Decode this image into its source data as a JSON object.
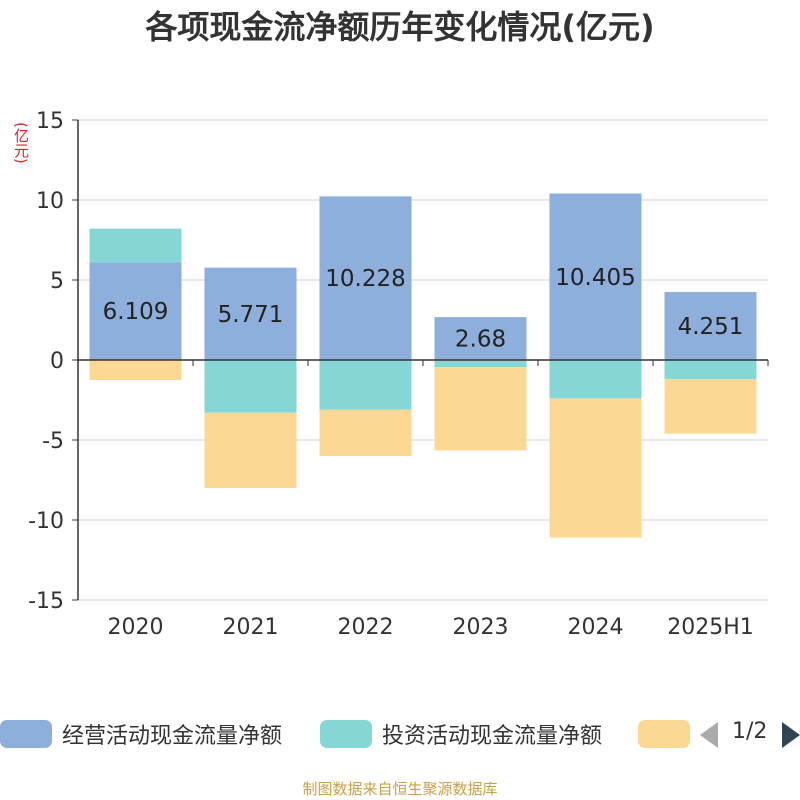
{
  "title": "各项现金流净额历年变化情况(亿元)",
  "unit_label": "(亿元)",
  "source": "制图数据来自恒生聚源数据库",
  "legend": {
    "items": [
      {
        "label": "经营活动现金流量净额",
        "color": "#8eaedc"
      },
      {
        "label": "投资活动现金流量净额",
        "color": "#86d6d6"
      },
      {
        "label": "",
        "color": "#fdd894"
      }
    ],
    "pager": "1/2"
  },
  "chart_data": {
    "type": "bar",
    "stacked": true,
    "categories": [
      "2020",
      "2021",
      "2022",
      "2023",
      "2024",
      "2025H1"
    ],
    "ylim": [
      -15,
      15
    ],
    "yticks": [
      15,
      10,
      5,
      0,
      -5,
      -10,
      -15
    ],
    "grid": true,
    "legend_position": "bottom",
    "series": [
      {
        "name": "经营活动现金流量净额",
        "color": "#8eaedc",
        "values": [
          6.109,
          5.771,
          10.228,
          2.68,
          10.405,
          4.251
        ],
        "labels": [
          "6.109",
          "5.771",
          "10.228",
          "2.68",
          "10.405",
          "4.251"
        ]
      },
      {
        "name": "投资活动现金流量净额",
        "color": "#86d6d6",
        "values": [
          2.1,
          -3.3,
          -3.1,
          -0.45,
          -2.4,
          -1.2
        ]
      },
      {
        "name": "",
        "color": "#fdd894",
        "values": [
          -1.25,
          -4.7,
          -2.9,
          -5.2,
          -8.7,
          -3.4
        ]
      }
    ]
  }
}
